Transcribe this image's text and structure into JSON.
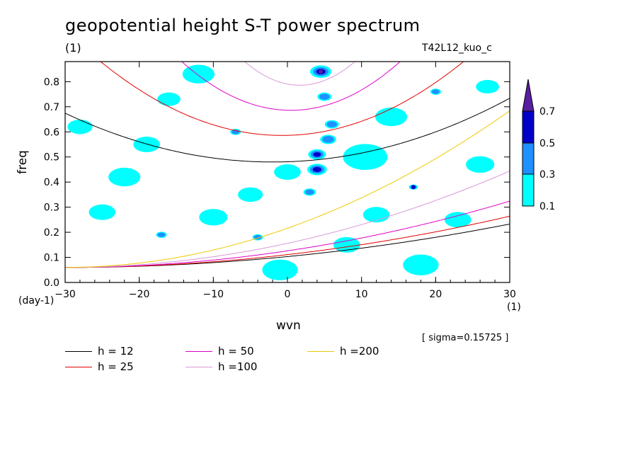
{
  "title": "geopotential height S-T power spectrum",
  "unit_left": "(1)",
  "run_label": "T42L12_kuo_c",
  "ylabel": "freq",
  "yunit": "(day-1)",
  "xlabel": "wvn",
  "xunit": "(1)",
  "sigma_label": "[ sigma=0.15725 ]",
  "chart_data": {
    "type": "heatmap",
    "xlim": [
      -30,
      30
    ],
    "ylim": [
      0,
      0.88
    ],
    "xticks": [
      -30,
      -20,
      -10,
      0,
      10,
      20,
      30
    ],
    "yticks": [
      0.0,
      0.1,
      0.2,
      0.3,
      0.4,
      0.5,
      0.6,
      0.7,
      0.8
    ],
    "xtick_labels": [
      "−30",
      "−20",
      "−10",
      "0",
      "10",
      "20",
      "30"
    ],
    "ytick_labels": [
      "0.0",
      "0.1",
      "0.2",
      "0.3",
      "0.4",
      "0.5",
      "0.6",
      "0.7",
      "0.8"
    ],
    "colorbar": {
      "levels": [
        0.1,
        0.3,
        0.5,
        0.7
      ],
      "labels": [
        "0.1",
        "0.3",
        "0.5",
        "0.7"
      ],
      "colors": [
        "#00ffff",
        "#1e90ff",
        "#0000c8",
        "#5a1ea0"
      ]
    },
    "blobs": [
      {
        "x": 4.5,
        "y": 0.84,
        "level": 3,
        "r": 1.2
      },
      {
        "x": 4.0,
        "y": 0.51,
        "level": 2,
        "r": 1.0
      },
      {
        "x": 4.0,
        "y": 0.45,
        "level": 2,
        "r": 1.1
      },
      {
        "x": 6.0,
        "y": 0.63,
        "level": 1,
        "r": 0.8
      },
      {
        "x": 5.5,
        "y": 0.57,
        "level": 1,
        "r": 0.9
      },
      {
        "x": 5.0,
        "y": 0.74,
        "level": 1,
        "r": 0.8
      },
      {
        "x": 20.0,
        "y": 0.76,
        "level": 1,
        "r": 0.6
      },
      {
        "x": -7.0,
        "y": 0.6,
        "level": 1,
        "r": 0.6
      },
      {
        "x": -17.0,
        "y": 0.19,
        "level": 1,
        "r": 0.6
      },
      {
        "x": 17.0,
        "y": 0.38,
        "level": 2,
        "r": 0.5
      },
      {
        "x": -4.0,
        "y": 0.18,
        "level": 1,
        "r": 0.6
      },
      {
        "x": 3.0,
        "y": 0.36,
        "level": 1,
        "r": 0.7
      },
      {
        "x": 0.0,
        "y": 0.44,
        "level": 0,
        "r": 1.5
      },
      {
        "x": 10.5,
        "y": 0.5,
        "level": 0,
        "r": 2.5
      },
      {
        "x": -25.0,
        "y": 0.28,
        "level": 0,
        "r": 1.5
      },
      {
        "x": -19.0,
        "y": 0.55,
        "level": 0,
        "r": 1.5
      },
      {
        "x": -22.0,
        "y": 0.42,
        "level": 0,
        "r": 1.8
      },
      {
        "x": 23.0,
        "y": 0.25,
        "level": 0,
        "r": 1.5
      },
      {
        "x": 26.0,
        "y": 0.47,
        "level": 0,
        "r": 1.6
      },
      {
        "x": -1.0,
        "y": 0.05,
        "level": 0,
        "r": 2.0
      },
      {
        "x": 18.0,
        "y": 0.07,
        "level": 0,
        "r": 2.0
      },
      {
        "x": -12.0,
        "y": 0.83,
        "level": 0,
        "r": 1.8
      },
      {
        "x": 14.0,
        "y": 0.66,
        "level": 0,
        "r": 1.8
      },
      {
        "x": -28.0,
        "y": 0.62,
        "level": 0,
        "r": 1.4
      },
      {
        "x": -10.0,
        "y": 0.26,
        "level": 0,
        "r": 1.6
      },
      {
        "x": 12.0,
        "y": 0.27,
        "level": 0,
        "r": 1.5
      },
      {
        "x": -16.0,
        "y": 0.73,
        "level": 0,
        "r": 1.3
      },
      {
        "x": 27.0,
        "y": 0.78,
        "level": 0,
        "r": 1.3
      },
      {
        "x": -5.0,
        "y": 0.35,
        "level": 0,
        "r": 1.4
      },
      {
        "x": 8.0,
        "y": 0.15,
        "level": 0,
        "r": 1.5
      }
    ],
    "series": [
      {
        "name": "h = 12",
        "h": 12,
        "color": "#000000",
        "legend": "h = 12"
      },
      {
        "name": "h = 25",
        "h": 25,
        "color": "#e00000",
        "legend": "h = 25"
      },
      {
        "name": "h = 50",
        "h": 50,
        "color": "#e000c8",
        "legend": "h = 50"
      },
      {
        "name": "h =100",
        "h": 100,
        "color": "#d898d8",
        "legend": "h =100"
      },
      {
        "name": "h =200",
        "h": 200,
        "color": "#f0c800",
        "legend": "h =200"
      }
    ]
  }
}
